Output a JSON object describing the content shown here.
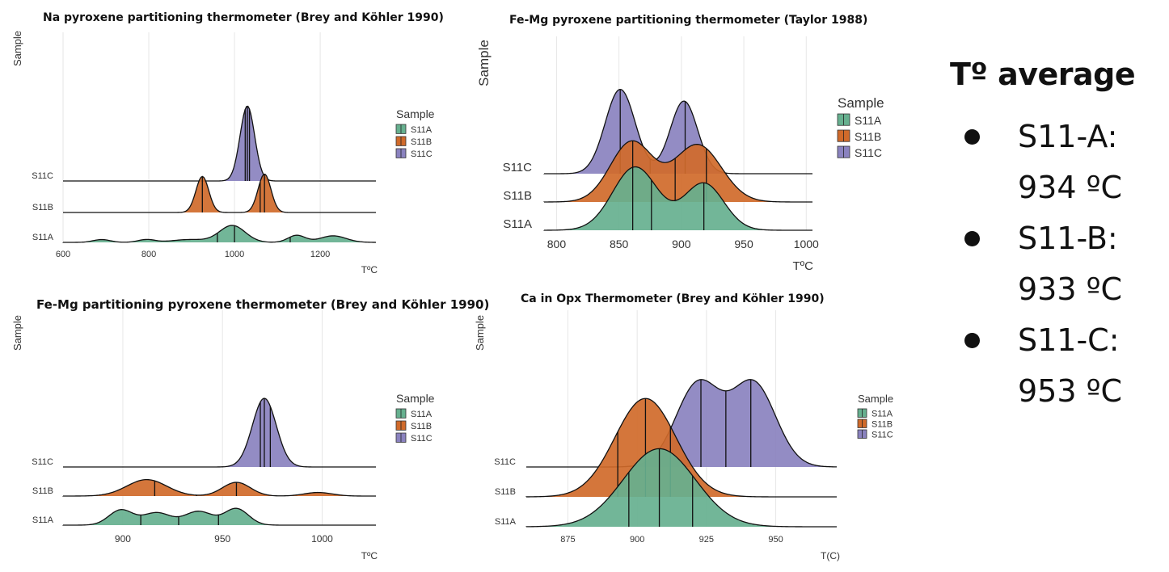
{
  "colors": {
    "S11A": "#66b08f",
    "S11B": "#d06a2a",
    "S11C": "#8a82bf"
  },
  "panel": {
    "title": "Tº average",
    "items": [
      {
        "name": "S11-A:",
        "value": "934 ºC"
      },
      {
        "name": "S11-B:",
        "value": "933 ºC"
      },
      {
        "name": "S11-C:",
        "value": "953 ºC"
      }
    ]
  },
  "chart_data": [
    {
      "type": "ridgeline",
      "title": "Na pyroxene partitioning thermometer (Brey and Köhler 1990)",
      "xlabel": "TºC",
      "ylabel": "Sample",
      "xlim": [
        600,
        1330
      ],
      "xticks": [
        600,
        800,
        1000,
        1200
      ],
      "legend_title": "Sample",
      "legend": [
        "S11A",
        "S11B",
        "S11C"
      ],
      "rows": [
        "S11A",
        "S11B",
        "S11C"
      ],
      "series": [
        {
          "name": "S11A",
          "peaks": [
            [
              690,
              0.06,
              20
            ],
            [
              795,
              0.06,
              20
            ],
            [
              895,
              0.06,
              40
            ],
            [
              995,
              0.36,
              30
            ],
            [
              1145,
              0.15,
              20
            ],
            [
              1230,
              0.14,
              30
            ]
          ],
          "quantiles": [
            960,
            1000,
            1130
          ]
        },
        {
          "name": "S11B",
          "peaks": [
            [
              925,
              0.77,
              15
            ],
            [
              1070,
              0.82,
              15
            ]
          ],
          "quantiles": [
            925,
            1060,
            1070
          ]
        },
        {
          "name": "S11C",
          "peaks": [
            [
              1030,
              1.6,
              17
            ]
          ],
          "quantiles": [
            1025,
            1030,
            1035
          ]
        }
      ]
    },
    {
      "type": "ridgeline",
      "title": "Fe-Mg pyroxene partitioning thermometer (Taylor 1988)",
      "xlabel": "TºC",
      "ylabel": "Sample",
      "xlim": [
        790,
        1005
      ],
      "xticks": [
        800,
        850,
        900,
        950,
        1000
      ],
      "legend_title": "Sample",
      "legend": [
        "S11A",
        "S11B",
        "S11C"
      ],
      "rows": [
        "S11A",
        "S11B",
        "S11C"
      ],
      "series": [
        {
          "name": "S11A",
          "peaks": [
            [
              863,
              1.35,
              18
            ],
            [
              918,
              1.0,
              16
            ]
          ],
          "quantiles": [
            861,
            876,
            918
          ]
        },
        {
          "name": "S11B",
          "peaks": [
            [
              860,
              1.28,
              17
            ],
            [
              913,
              1.22,
              19
            ]
          ],
          "quantiles": [
            861,
            895,
            920
          ]
        },
        {
          "name": "S11C",
          "peaks": [
            [
              851,
              1.8,
              12
            ],
            [
              902,
              1.55,
              11
            ]
          ],
          "quantiles": [
            851,
            875,
            903
          ]
        }
      ]
    },
    {
      "type": "ridgeline",
      "title": "Fe-Mg partitioning pyroxene thermometer (Brey and Köhler 1990)",
      "xlabel": "TºC",
      "ylabel": "Sample",
      "xlim": [
        870,
        1027
      ],
      "xticks": [
        900,
        950,
        1000
      ],
      "legend_title": "Sample",
      "legend": [
        "S11A",
        "S11B",
        "S11C"
      ],
      "rows": [
        "S11A",
        "S11B",
        "S11C"
      ],
      "series": [
        {
          "name": "S11A",
          "peaks": [
            [
              899,
              0.55,
              6
            ],
            [
              917,
              0.45,
              7
            ],
            [
              938,
              0.5,
              7
            ],
            [
              957,
              0.6,
              6
            ]
          ],
          "quantiles": [
            909,
            928,
            948
          ]
        },
        {
          "name": "S11B",
          "peaks": [
            [
              912,
              0.6,
              10
            ],
            [
              957,
              0.5,
              7
            ],
            [
              998,
              0.13,
              7
            ]
          ],
          "quantiles": [
            916,
            937,
            957
          ]
        },
        {
          "name": "S11C",
          "peaks": [
            [
              971,
              2.5,
              6
            ]
          ],
          "quantiles": [
            969,
            971,
            974
          ]
        }
      ]
    },
    {
      "type": "ridgeline",
      "title": "Ca in Opx Thermometer (Brey and Köhler 1990)",
      "xlabel": "T(C)",
      "ylabel": "Sample",
      "xlim": [
        860,
        972
      ],
      "xticks": [
        875,
        900,
        925,
        950
      ],
      "legend_title": "Sample",
      "legend": [
        "S11A",
        "S11B",
        "S11C"
      ],
      "rows": [
        "S11A",
        "S11B",
        "S11C"
      ],
      "series": [
        {
          "name": "S11A",
          "peaks": [
            [
              908,
              2.3,
              13
            ]
          ],
          "quantiles": [
            897,
            908,
            920
          ]
        },
        {
          "name": "S11B",
          "peaks": [
            [
              903,
              2.9,
              11
            ]
          ],
          "quantiles": [
            893,
            903,
            912
          ]
        },
        {
          "name": "S11C",
          "peaks": [
            [
              922,
              2.45,
              8
            ],
            [
              942,
              2.45,
              8
            ]
          ],
          "quantiles": [
            923,
            932,
            941
          ]
        }
      ]
    }
  ]
}
